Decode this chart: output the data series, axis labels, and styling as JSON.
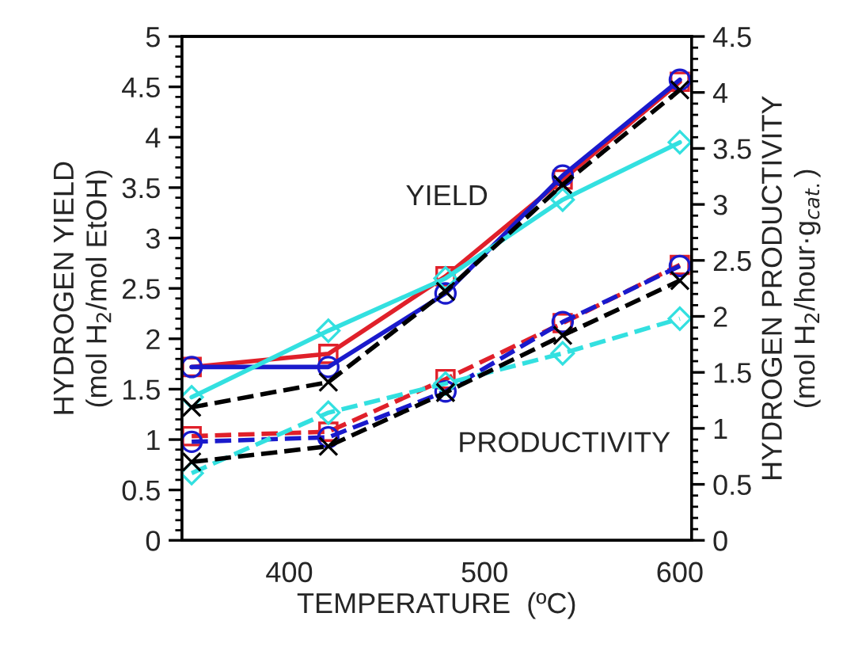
{
  "chart_data": {
    "type": "line",
    "xlabel": "TEMPERATURE  (ºC)",
    "ylabel": "HYDROGEN YIELD\n(mol H$_{2}$/mol EtOH)",
    "y2label": "HYDROGEN PRODUCTIVITY\n(mol H$_{2}$/hour·g$_{cat.}$)",
    "x": [
      350,
      420,
      480,
      540,
      600
    ],
    "xlim": [
      345,
      606
    ],
    "xticks": [
      400,
      500,
      600
    ],
    "ylim": [
      0,
      5
    ],
    "yticks": [
      0,
      0.5,
      1,
      1.5,
      2,
      2.5,
      3,
      3.5,
      4,
      4.5,
      5
    ],
    "y2lim": [
      0,
      4.5
    ],
    "y2ticks": [
      0,
      0.5,
      1,
      1.5,
      2,
      2.5,
      3,
      3.5,
      4,
      4.5
    ],
    "grid": false,
    "legend": false,
    "annotations": [
      "YIELD",
      "PRODUCTIVITY"
    ],
    "series": [
      {
        "color": "#e0202a",
        "marker": "square",
        "line_style": "solid",
        "values": [
          1.72,
          1.85,
          2.62,
          3.58,
          4.55
        ]
      },
      {
        "color": "#1a1acc",
        "marker": "circle",
        "line_style": "solid",
        "values": [
          1.72,
          1.72,
          2.45,
          3.62,
          4.57
        ]
      },
      {
        "color": "#33e0e0",
        "marker": "diamond",
        "line_style": "solid",
        "values": [
          1.42,
          2.08,
          2.6,
          3.38,
          3.95
        ]
      },
      {
        "color": "#000000",
        "marker": "cross",
        "line_style": "dashed",
        "values": [
          1.32,
          1.57,
          2.47,
          3.53,
          4.47
        ]
      },
      {
        "color": "#e0202a",
        "marker": "square",
        "line_style": "dashed",
        "axis": "y2",
        "values": [
          0.93,
          0.97,
          1.44,
          1.94,
          2.46
        ]
      },
      {
        "color": "#1a1acc",
        "marker": "circle",
        "line_style": "dashed",
        "axis": "y2",
        "values": [
          0.88,
          0.92,
          1.33,
          1.95,
          2.45
        ]
      },
      {
        "color": "#33e0e0",
        "marker": "diamond",
        "line_style": "dashed",
        "axis": "y2",
        "values": [
          0.6,
          1.14,
          1.4,
          1.67,
          1.98
        ]
      },
      {
        "color": "#000000",
        "marker": "cross",
        "line_style": "dashed",
        "axis": "y2",
        "values": [
          0.7,
          0.84,
          1.32,
          1.83,
          2.32
        ]
      }
    ]
  }
}
